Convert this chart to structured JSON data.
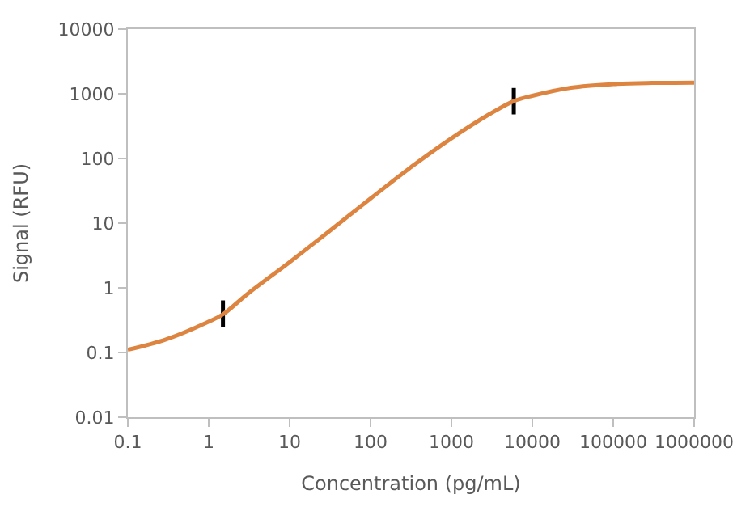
{
  "chart_data": {
    "type": "line",
    "xlabel": "Concentration (pg/mL)",
    "ylabel": "Signal (RFU)",
    "log": "xy",
    "grid": false,
    "xlim": [
      0.1,
      1000000
    ],
    "xticks": [
      0.1,
      1,
      10,
      100,
      1000,
      10000,
      100000,
      1000000
    ],
    "ylim": [
      0.01,
      10000
    ],
    "yticks": [
      0.01,
      0.1,
      1,
      10,
      100,
      1000,
      10000
    ],
    "series": [
      {
        "color": "#dd8540",
        "marker": "none",
        "x": [
          0.1,
          0.3,
          1,
          1.5,
          3,
          10,
          30,
          100,
          300,
          1000,
          3000,
          5900,
          10000,
          30000,
          100000,
          300000,
          1000000
        ],
        "values": [
          0.11,
          0.16,
          0.3,
          0.39,
          0.8,
          2.5,
          7.3,
          24,
          70,
          205,
          490,
          770,
          930,
          1240,
          1410,
          1470,
          1490
        ],
        "errors": [
          null,
          null,
          null,
          [
            0.25,
            0.64
          ],
          null,
          null,
          null,
          null,
          null,
          null,
          null,
          [
            480,
            1230
          ],
          null,
          null,
          null,
          null,
          null
        ]
      }
    ]
  }
}
